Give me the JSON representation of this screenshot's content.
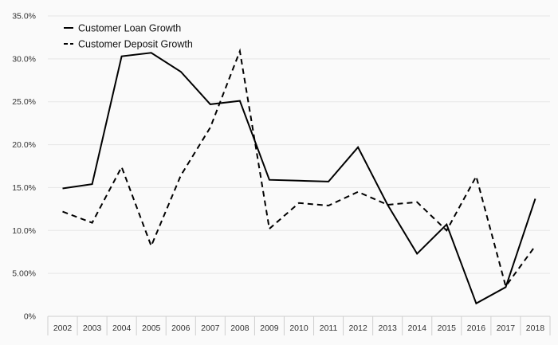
{
  "chart_data": {
    "type": "line",
    "title": "",
    "xlabel": "",
    "ylabel": "",
    "categories": [
      "2002",
      "2003",
      "2004",
      "2005",
      "2006",
      "2007",
      "2008",
      "2009",
      "2010",
      "2011",
      "2012",
      "2013",
      "2014",
      "2015",
      "2016",
      "2017",
      "2018"
    ],
    "y_ticks": [
      "0%",
      "5.00%",
      "10.0%",
      "15.0%",
      "20.0%",
      "25.0%",
      "30.0%",
      "35.0%"
    ],
    "ylim": [
      0,
      35
    ],
    "grid": "horizontal",
    "legend_position": "top-left",
    "series": [
      {
        "name": "Customer Loan Growth",
        "style": "solid",
        "color": "#000000",
        "values": [
          14.9,
          15.4,
          30.3,
          30.7,
          28.5,
          24.7,
          25.1,
          15.9,
          15.8,
          15.7,
          19.7,
          13.0,
          7.3,
          10.7,
          1.5,
          3.4,
          13.7
        ]
      },
      {
        "name": "Customer Deposit Growth",
        "style": "dashed",
        "color": "#000000",
        "values": [
          12.2,
          10.9,
          17.4,
          8.2,
          16.4,
          22.0,
          30.9,
          10.2,
          13.2,
          12.9,
          14.5,
          13.0,
          13.3,
          10.0,
          16.3,
          3.5,
          8.2
        ]
      }
    ]
  }
}
